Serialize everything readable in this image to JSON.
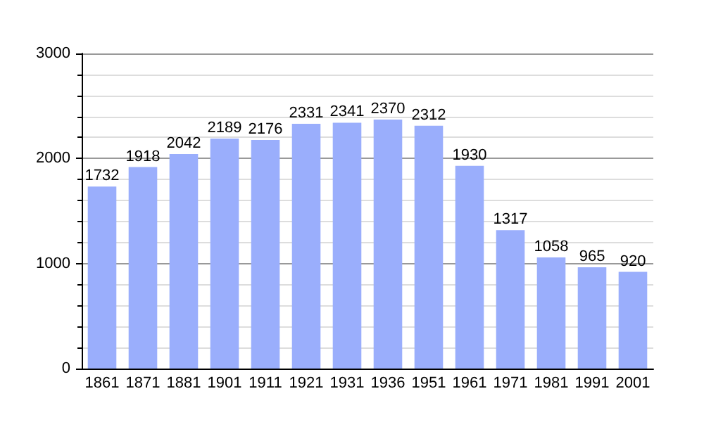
{
  "chart_data": {
    "type": "bar",
    "categories": [
      "1861",
      "1871",
      "1881",
      "1901",
      "1911",
      "1921",
      "1931",
      "1936",
      "1951",
      "1961",
      "1971",
      "1981",
      "1991",
      "2001"
    ],
    "values": [
      1732,
      1918,
      2042,
      2189,
      2176,
      2331,
      2341,
      2370,
      2312,
      1930,
      1317,
      1058,
      965,
      920
    ],
    "color": "#9aaefc",
    "ylim": [
      0,
      3000
    ],
    "yticks": [
      0,
      1000,
      2000,
      3000
    ],
    "grid": "y",
    "data_labels": true
  }
}
